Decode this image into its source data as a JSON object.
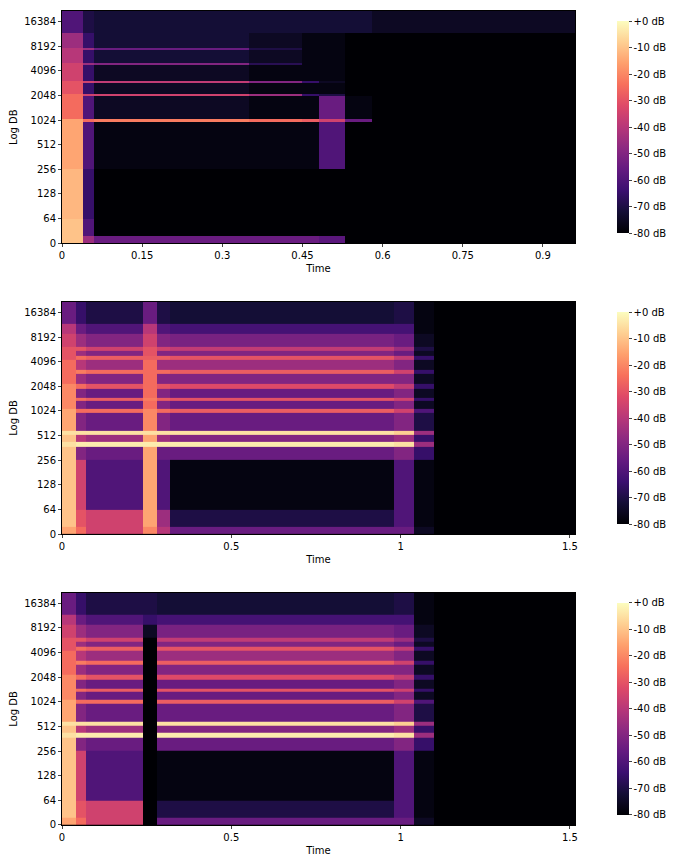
{
  "chart_data": [
    {
      "type": "heatmap",
      "x_label": "Time",
      "y_label": "Log DB",
      "log": "y",
      "xlim": [
        0,
        0.96
      ],
      "xticks": [
        0,
        0.15,
        0.3,
        0.45,
        0.6,
        0.75,
        0.9
      ],
      "ylim": [
        0,
        22050
      ],
      "yticks": [
        0,
        64,
        128,
        256,
        512,
        1024,
        2048,
        4096,
        8192,
        16384
      ],
      "x": [
        0,
        0.04,
        0.06,
        0.35,
        0.45,
        0.48,
        0.53,
        0.58,
        0.96
      ],
      "y": [
        0,
        20,
        64,
        256,
        980,
        1070,
        2000,
        2150,
        2900,
        3100,
        4800,
        5100,
        7300,
        7700,
        12000,
        22050
      ],
      "z": [
        [
          -10,
          -45,
          -55,
          -55,
          -55,
          -58,
          -80,
          -80
        ],
        [
          -10,
          -60,
          -80,
          -80,
          -80,
          -80,
          -80,
          -80
        ],
        [
          -12,
          -65,
          -80,
          -80,
          -80,
          -80,
          -80,
          -80
        ],
        [
          -15,
          -60,
          -78,
          -78,
          -78,
          -60,
          -80,
          -80
        ],
        [
          -15,
          -25,
          -22,
          -25,
          -28,
          -35,
          -55,
          -80
        ],
        [
          -25,
          -60,
          -75,
          -78,
          -78,
          -55,
          -78,
          -80
        ],
        [
          -25,
          -35,
          -35,
          -45,
          -65,
          -70,
          -80,
          -80
        ],
        [
          -30,
          -65,
          -75,
          -78,
          -78,
          -78,
          -80,
          -80
        ],
        [
          -30,
          -35,
          -38,
          -50,
          -65,
          -75,
          -80,
          -80
        ],
        [
          -35,
          -65,
          -75,
          -78,
          -78,
          -78,
          -80,
          -80
        ],
        [
          -35,
          -45,
          -50,
          -68,
          -78,
          -78,
          -80,
          -80
        ],
        [
          -40,
          -65,
          -72,
          -75,
          -78,
          -78,
          -80,
          -80
        ],
        [
          -40,
          -45,
          -55,
          -70,
          -78,
          -78,
          -80,
          -80
        ],
        [
          -45,
          -65,
          -72,
          -75,
          -78,
          -78,
          -80,
          -80
        ],
        [
          -60,
          -70,
          -72,
          -72,
          -72,
          -72,
          -72,
          -75
        ]
      ],
      "colorbar": {
        "range": [
          -80,
          0
        ],
        "ticks": [
          {
            "value": 0,
            "label": "+0 dB"
          },
          {
            "value": -10,
            "label": "-10 dB"
          },
          {
            "value": -20,
            "label": "-20 dB"
          },
          {
            "value": -30,
            "label": "-30 dB"
          },
          {
            "value": -40,
            "label": "-40 dB"
          },
          {
            "value": -50,
            "label": "-50 dB"
          },
          {
            "value": -60,
            "label": "-60 dB"
          },
          {
            "value": -70,
            "label": "-70 dB"
          },
          {
            "value": -80,
            "label": "-80 dB"
          }
        ]
      }
    },
    {
      "type": "heatmap",
      "x_label": "Time",
      "y_label": "Log DB",
      "log": "y",
      "xlim": [
        0,
        1.515
      ],
      "xticks": [
        0,
        0.5,
        1,
        1.5
      ],
      "ylim": [
        0,
        22050
      ],
      "yticks": [
        0,
        64,
        128,
        256,
        512,
        1024,
        2048,
        4096,
        8192,
        16384
      ],
      "x": [
        0,
        0.04,
        0.07,
        0.24,
        0.28,
        0.32,
        0.98,
        1.04,
        1.1,
        1.515
      ],
      "y": [
        0,
        20,
        64,
        256,
        370,
        430,
        520,
        590,
        980,
        1100,
        1350,
        1500,
        1900,
        2200,
        2900,
        3300,
        4300,
        4800,
        5500,
        6200,
        9000,
        12000,
        22050
      ],
      "z": [
        [
          -15,
          -25,
          -35,
          -20,
          -40,
          -55,
          -55,
          -75,
          -80
        ],
        [
          -10,
          -30,
          -35,
          -15,
          -45,
          -70,
          -60,
          -78,
          -80
        ],
        [
          -10,
          -35,
          -60,
          -15,
          -60,
          -78,
          -60,
          -78,
          -80
        ],
        [
          -10,
          -50,
          -55,
          -15,
          -55,
          -55,
          -50,
          -65,
          -80
        ],
        [
          -5,
          -3,
          -3,
          -3,
          -3,
          -3,
          -5,
          -45,
          -80
        ],
        [
          -10,
          -40,
          -45,
          -15,
          -45,
          -50,
          -45,
          -65,
          -80
        ],
        [
          -5,
          -5,
          -5,
          -5,
          -5,
          -5,
          -8,
          -45,
          -80
        ],
        [
          -15,
          -50,
          -55,
          -20,
          -50,
          -55,
          -50,
          -70,
          -80
        ],
        [
          -15,
          -25,
          -25,
          -20,
          -25,
          -28,
          -35,
          -60,
          -80
        ],
        [
          -20,
          -50,
          -55,
          -25,
          -50,
          -55,
          -50,
          -75,
          -80
        ],
        [
          -20,
          -25,
          -28,
          -22,
          -28,
          -30,
          -35,
          -65,
          -80
        ],
        [
          -20,
          -50,
          -55,
          -25,
          -50,
          -55,
          -50,
          -75,
          -80
        ],
        [
          -20,
          -25,
          -30,
          -25,
          -30,
          -32,
          -38,
          -65,
          -80
        ],
        [
          -25,
          -45,
          -50,
          -25,
          -50,
          -50,
          -50,
          -75,
          -80
        ],
        [
          -25,
          -22,
          -25,
          -25,
          -25,
          -28,
          -35,
          -65,
          -80
        ],
        [
          -25,
          -40,
          -45,
          -25,
          -45,
          -45,
          -50,
          -75,
          -80
        ],
        [
          -30,
          -25,
          -28,
          -28,
          -28,
          -30,
          -38,
          -65,
          -80
        ],
        [
          -30,
          -45,
          -50,
          -30,
          -50,
          -50,
          -55,
          -75,
          -80
        ],
        [
          -30,
          -30,
          -35,
          -30,
          -35,
          -38,
          -45,
          -70,
          -80
        ],
        [
          -35,
          -45,
          -50,
          -35,
          -50,
          -52,
          -55,
          -75,
          -80
        ],
        [
          -40,
          -55,
          -60,
          -40,
          -60,
          -62,
          -62,
          -78,
          -80
        ],
        [
          -55,
          -65,
          -70,
          -55,
          -70,
          -72,
          -70,
          -78,
          -80
        ]
      ],
      "colorbar": {
        "range": [
          -80,
          0
        ],
        "ticks": [
          {
            "value": 0,
            "label": "+0 dB"
          },
          {
            "value": -10,
            "label": "-10 dB"
          },
          {
            "value": -20,
            "label": "-20 dB"
          },
          {
            "value": -30,
            "label": "-30 dB"
          },
          {
            "value": -40,
            "label": "-40 dB"
          },
          {
            "value": -50,
            "label": "-50 dB"
          },
          {
            "value": -60,
            "label": "-60 dB"
          },
          {
            "value": -70,
            "label": "-70 dB"
          },
          {
            "value": -80,
            "label": "-80 dB"
          }
        ]
      }
    },
    {
      "type": "heatmap",
      "x_label": "Time",
      "y_label": "Log DB",
      "log": "y",
      "xlim": [
        0,
        1.515
      ],
      "xticks": [
        0,
        0.5,
        1,
        1.5
      ],
      "ylim": [
        0,
        22050
      ],
      "yticks": [
        0,
        64,
        128,
        256,
        512,
        1024,
        2048,
        4096,
        8192,
        16384
      ],
      "x": [
        0,
        0.04,
        0.07,
        0.24,
        0.28,
        0.32,
        0.98,
        1.04,
        1.1,
        1.515
      ],
      "y": [
        0,
        20,
        64,
        256,
        370,
        430,
        520,
        590,
        980,
        1100,
        1350,
        1500,
        1900,
        2200,
        2900,
        3300,
        4300,
        4800,
        5500,
        6200,
        9000,
        12000,
        22050
      ],
      "z": [
        [
          -15,
          -25,
          -35,
          -80,
          -55,
          -55,
          -55,
          -75,
          -80
        ],
        [
          -10,
          -30,
          -35,
          -80,
          -70,
          -70,
          -60,
          -78,
          -80
        ],
        [
          -10,
          -35,
          -60,
          -80,
          -78,
          -78,
          -60,
          -78,
          -80
        ],
        [
          -10,
          -50,
          -55,
          -80,
          -55,
          -55,
          -50,
          -65,
          -80
        ],
        [
          -5,
          -3,
          -3,
          -80,
          -3,
          -3,
          -5,
          -45,
          -80
        ],
        [
          -10,
          -40,
          -45,
          -80,
          -50,
          -50,
          -45,
          -65,
          -80
        ],
        [
          -5,
          -5,
          -5,
          -80,
          -5,
          -5,
          -8,
          -45,
          -80
        ],
        [
          -15,
          -50,
          -55,
          -80,
          -55,
          -55,
          -50,
          -70,
          -80
        ],
        [
          -15,
          -25,
          -25,
          -80,
          -28,
          -28,
          -35,
          -60,
          -80
        ],
        [
          -20,
          -50,
          -55,
          -80,
          -55,
          -55,
          -50,
          -75,
          -80
        ],
        [
          -20,
          -25,
          -28,
          -80,
          -30,
          -30,
          -35,
          -65,
          -80
        ],
        [
          -20,
          -50,
          -55,
          -80,
          -55,
          -55,
          -50,
          -75,
          -80
        ],
        [
          -20,
          -25,
          -30,
          -80,
          -32,
          -32,
          -38,
          -65,
          -80
        ],
        [
          -25,
          -45,
          -50,
          -80,
          -50,
          -50,
          -50,
          -75,
          -80
        ],
        [
          -25,
          -22,
          -25,
          -80,
          -28,
          -28,
          -35,
          -65,
          -80
        ],
        [
          -25,
          -40,
          -45,
          -80,
          -45,
          -45,
          -50,
          -75,
          -80
        ],
        [
          -30,
          -25,
          -28,
          -80,
          -30,
          -30,
          -38,
          -65,
          -80
        ],
        [
          -30,
          -45,
          -50,
          -80,
          -50,
          -50,
          -55,
          -75,
          -80
        ],
        [
          -30,
          -30,
          -35,
          -80,
          -38,
          -38,
          -45,
          -70,
          -80
        ],
        [
          -35,
          -45,
          -50,
          -75,
          -52,
          -52,
          -55,
          -75,
          -80
        ],
        [
          -40,
          -55,
          -60,
          -65,
          -62,
          -62,
          -62,
          -78,
          -80
        ],
        [
          -55,
          -65,
          -70,
          -70,
          -72,
          -72,
          -70,
          -78,
          -80
        ]
      ],
      "colorbar": {
        "range": [
          -80,
          0
        ],
        "ticks": [
          {
            "value": 0,
            "label": "+0 dB"
          },
          {
            "value": -10,
            "label": "-10 dB"
          },
          {
            "value": -20,
            "label": "-20 dB"
          },
          {
            "value": -30,
            "label": "-30 dB"
          },
          {
            "value": -40,
            "label": "-40 dB"
          },
          {
            "value": -50,
            "label": "-50 dB"
          },
          {
            "value": -60,
            "label": "-60 dB"
          },
          {
            "value": -70,
            "label": "-70 dB"
          },
          {
            "value": -80,
            "label": "-80 dB"
          }
        ]
      }
    }
  ]
}
